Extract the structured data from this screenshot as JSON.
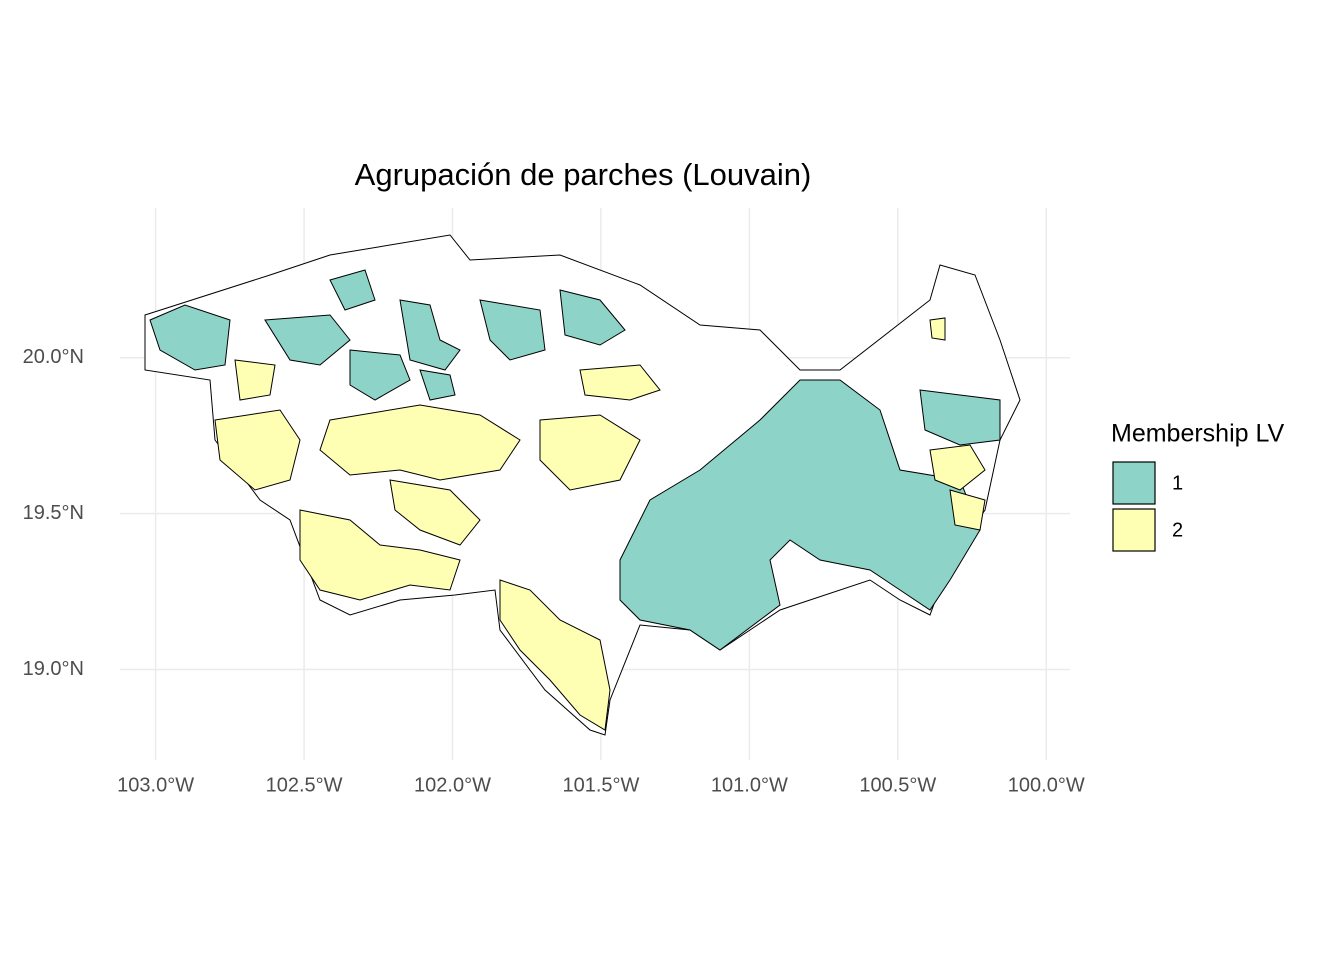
{
  "chart_data": {
    "type": "map",
    "title": "Agrupación de parches (Louvain)",
    "xlim": [
      -103.12,
      -99.92
    ],
    "ylim": [
      18.71,
      20.48
    ],
    "xticks": [
      {
        "value": -103,
        "label": "103.0°W"
      },
      {
        "value": -102.5,
        "label": "102.5°W"
      },
      {
        "value": -102,
        "label": "102.0°W"
      },
      {
        "value": -101.5,
        "label": "101.5°W"
      },
      {
        "value": -101,
        "label": "101.0°W"
      },
      {
        "value": -100.5,
        "label": "100.5°W"
      },
      {
        "value": -100,
        "label": "100.0°W"
      }
    ],
    "yticks": [
      {
        "value": 19,
        "label": "19.0°N"
      },
      {
        "value": 19.5,
        "label": "19.5°N"
      },
      {
        "value": 20,
        "label": "20.0°N"
      }
    ],
    "grid": true,
    "legend_title": "Membership LV",
    "categories": [
      "1",
      "2"
    ],
    "colors": [
      "#8dd3c7",
      "#ffffb3"
    ]
  }
}
